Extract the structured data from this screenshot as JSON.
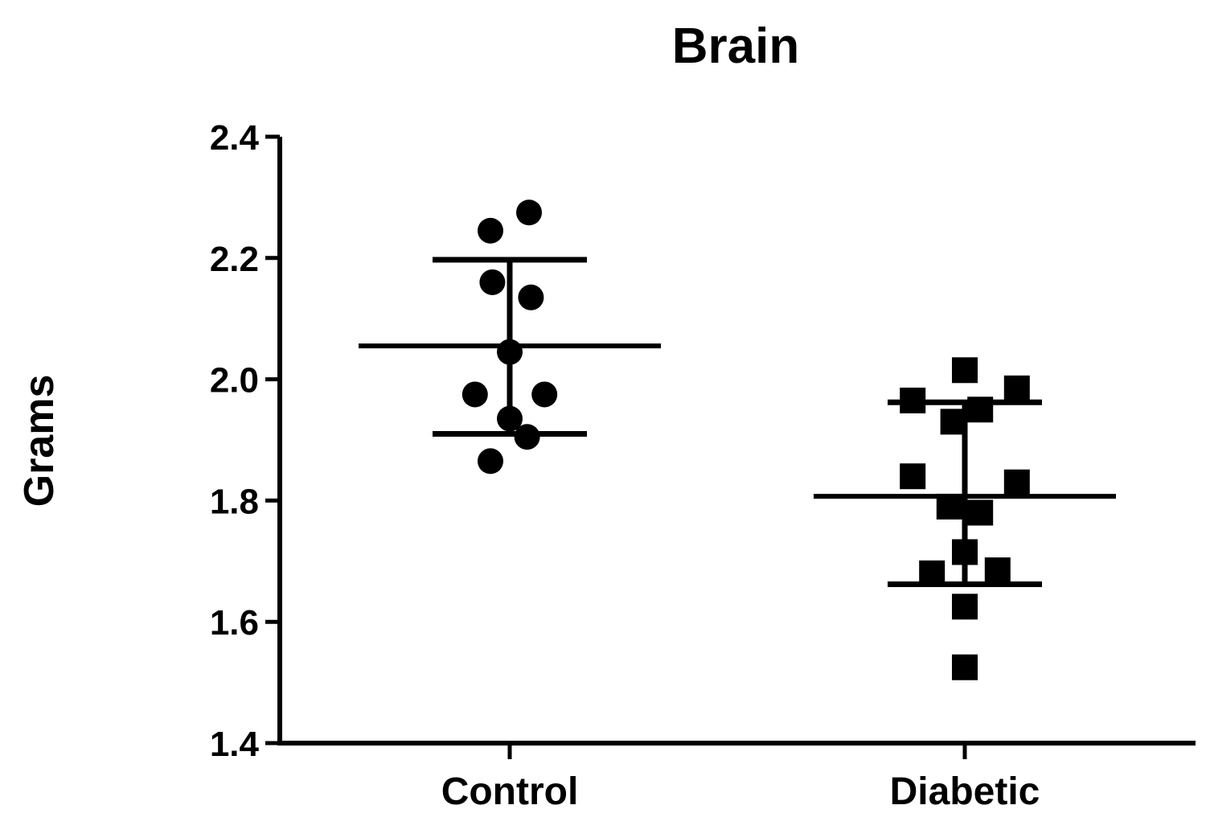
{
  "chart_data": {
    "type": "scatter",
    "title": "Brain",
    "xlabel": "",
    "ylabel": "Grams",
    "ylim": [
      1.4,
      2.4
    ],
    "yticks": [
      "1.4",
      "1.6",
      "1.8",
      "2.0",
      "2.2",
      "2.4"
    ],
    "categories": [
      "Control",
      "Diabetic"
    ],
    "grid": false,
    "legend": "none",
    "series": [
      {
        "category": "Control",
        "marker": "circle",
        "color": "#000000",
        "points": [
          {
            "jitter": 0.5,
            "value": 2.275
          },
          {
            "jitter": -0.5,
            "value": 2.245
          },
          {
            "jitter": -0.45,
            "value": 2.16
          },
          {
            "jitter": 0.55,
            "value": 2.135
          },
          {
            "jitter": 0.0,
            "value": 2.045
          },
          {
            "jitter": -0.9,
            "value": 1.975
          },
          {
            "jitter": 0.9,
            "value": 1.975
          },
          {
            "jitter": 0.0,
            "value": 1.935
          },
          {
            "jitter": 0.45,
            "value": 1.905
          },
          {
            "jitter": -0.5,
            "value": 1.865
          }
        ],
        "mean": 2.055,
        "sd_upper": 2.197,
        "sd_lower": 1.91
      },
      {
        "category": "Diabetic",
        "marker": "square",
        "color": "#000000",
        "points": [
          {
            "jitter": 0.0,
            "value": 2.015
          },
          {
            "jitter": 1.35,
            "value": 1.985
          },
          {
            "jitter": -1.35,
            "value": 1.965
          },
          {
            "jitter": 0.4,
            "value": 1.95
          },
          {
            "jitter": -0.3,
            "value": 1.93
          },
          {
            "jitter": -1.35,
            "value": 1.84
          },
          {
            "jitter": 1.35,
            "value": 1.83
          },
          {
            "jitter": -0.4,
            "value": 1.79
          },
          {
            "jitter": 0.4,
            "value": 1.78
          },
          {
            "jitter": 0.0,
            "value": 1.715
          },
          {
            "jitter": 0.85,
            "value": 1.685
          },
          {
            "jitter": -0.85,
            "value": 1.68
          },
          {
            "jitter": 0.0,
            "value": 1.625
          },
          {
            "jitter": 0.0,
            "value": 1.525
          }
        ],
        "mean": 1.807,
        "sd_upper": 1.962,
        "sd_lower": 1.662
      }
    ]
  }
}
